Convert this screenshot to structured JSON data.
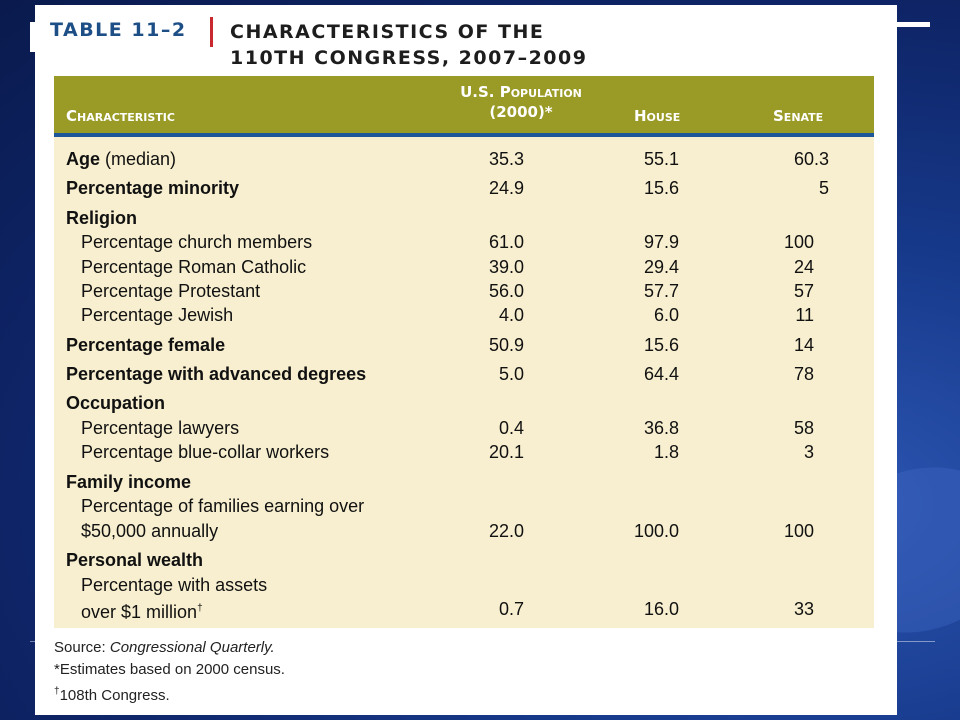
{
  "title": {
    "label": "TABLE 11–2",
    "lines": [
      "CHARACTERISTICS OF THE",
      "110TH CONGRESS, 2007–2009"
    ]
  },
  "columns": {
    "characteristic": "Characteristic",
    "population_line1": "U.S. Population",
    "population_line2": "(2000)*",
    "house": "House",
    "senate": "Senate"
  },
  "rows": {
    "age_label": "Age",
    "age_suffix": " (median)",
    "age_pop": "35.3",
    "age_house": "55.1",
    "age_senate": "60.3",
    "minority_label": "Percentage minority",
    "minority_pop": "24.9",
    "minority_house": "15.6",
    "minority_senate": "5",
    "religion_label": "Religion",
    "church_label": "Percentage church members",
    "church_pop": "61.0",
    "church_house": "97.9",
    "church_senate": "100",
    "catholic_label": "Percentage Roman Catholic",
    "catholic_pop": "39.0",
    "catholic_house": "29.4",
    "catholic_senate": "24",
    "protestant_label": "Percentage Protestant",
    "protestant_pop": "56.0",
    "protestant_house": "57.7",
    "protestant_senate": "57",
    "jewish_label": "Percentage Jewish",
    "jewish_pop": "4.0",
    "jewish_house": "6.0",
    "jewish_senate": "11",
    "female_label": "Percentage female",
    "female_pop": "50.9",
    "female_house": "15.6",
    "female_senate": "14",
    "degrees_label": "Percentage with advanced degrees",
    "degrees_pop": "5.0",
    "degrees_house": "64.4",
    "degrees_senate": "78",
    "occupation_label": "Occupation",
    "lawyers_label": "Percentage lawyers",
    "lawyers_pop": "0.4",
    "lawyers_house": "36.8",
    "lawyers_senate": "58",
    "bluecollar_label": "Percentage blue-collar workers",
    "bluecollar_pop": "20.1",
    "bluecollar_house": "1.8",
    "bluecollar_senate": "3",
    "income_label": "Family income",
    "income_sub1": "Percentage of families earning over",
    "income_sub2": "$50,000 annually",
    "income_pop": "22.0",
    "income_house": "100.0",
    "income_senate": "100",
    "wealth_label": "Personal wealth",
    "wealth_sub1": "Percentage with assets",
    "wealth_sub2": "over $1 million",
    "wealth_mark": "†",
    "wealth_pop": "0.7",
    "wealth_house": "16.0",
    "wealth_senate": "33"
  },
  "notes": {
    "source_prefix": "Source: ",
    "source_name": "Congressional Quarterly.",
    "estimate": "*Estimates based on 2000 census.",
    "dagger": "†",
    "dagger_text": "108th Congress."
  },
  "colors": {
    "header_band": "#9a9a27",
    "header_rule": "#1e5799",
    "table_background": "#f7efcf",
    "title_label": "#1d4f86",
    "title_separator": "#c8282e"
  }
}
